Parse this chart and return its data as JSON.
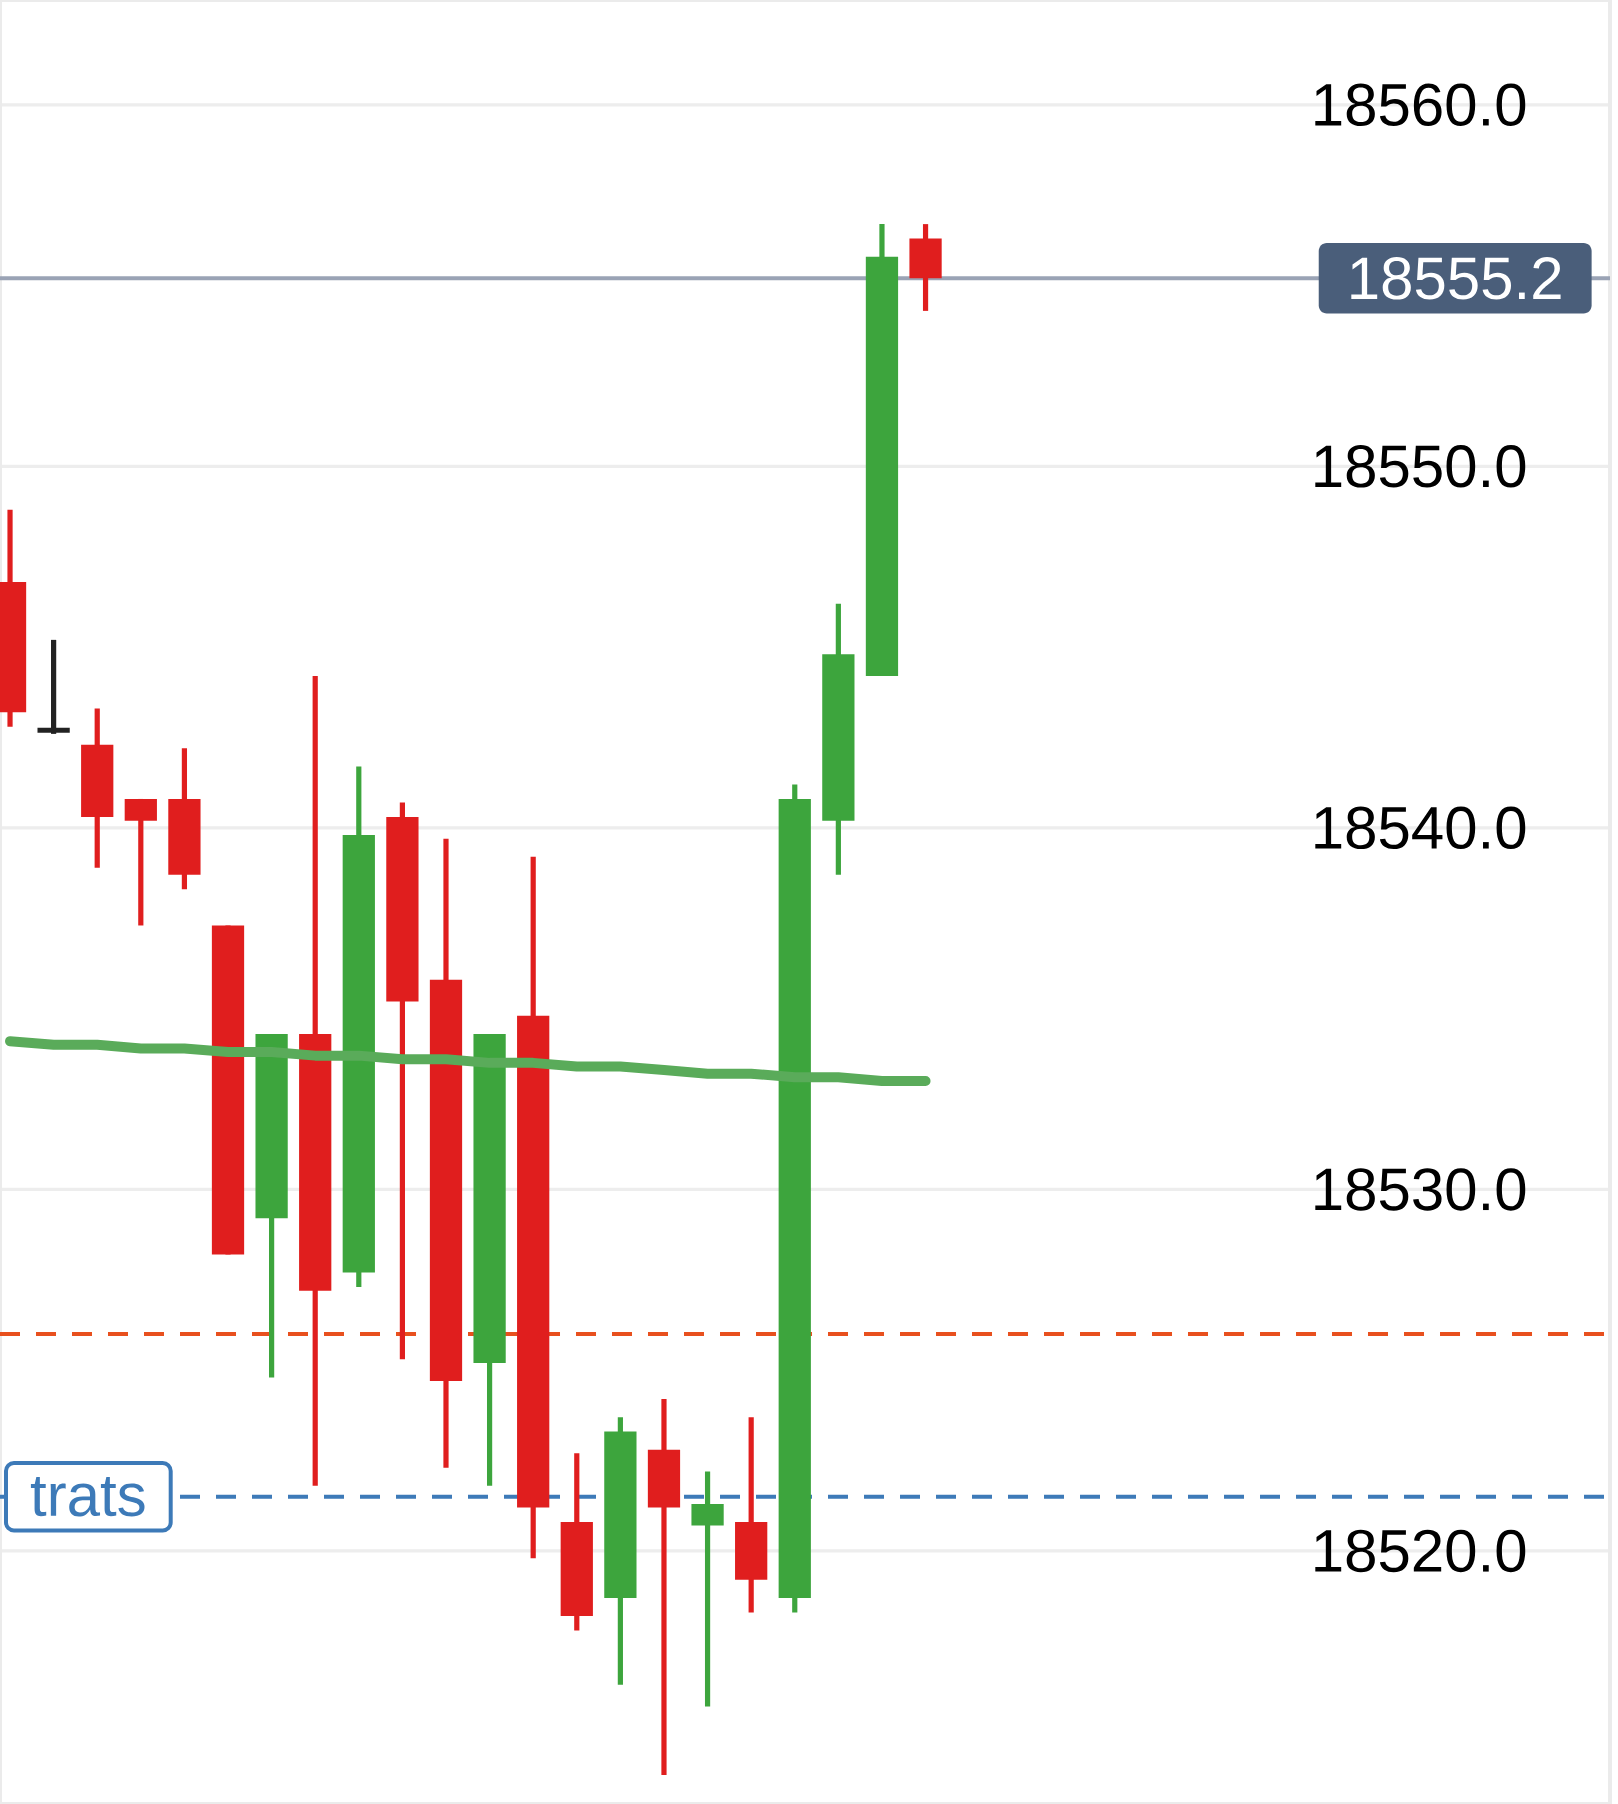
{
  "chart_data": {
    "type": "candlestick",
    "categories": [
      null,
      null,
      null,
      null,
      null,
      null,
      null,
      null,
      null,
      null,
      null,
      null,
      null,
      null,
      null,
      null,
      null,
      null,
      null,
      null,
      null,
      null
    ],
    "ohlc": [
      [
        18546.8,
        18548.8,
        18542.8,
        18543.2
      ],
      [
        18542.7,
        18545.2,
        18542.6,
        18542.7
      ],
      [
        18542.3,
        18543.3,
        18538.9,
        18540.3
      ],
      [
        18540.8,
        18540.8,
        18537.3,
        18540.2
      ],
      [
        18540.8,
        18542.2,
        18538.3,
        18538.7
      ],
      [
        18537.3,
        18537.3,
        18528.2,
        18528.2
      ],
      [
        18529.2,
        18534.3,
        18524.8,
        18534.3
      ],
      [
        18534.3,
        18544.2,
        18521.8,
        18527.2
      ],
      [
        18527.7,
        18541.7,
        18527.3,
        18539.8
      ],
      [
        18540.3,
        18540.7,
        18525.3,
        18535.2
      ],
      [
        18535.8,
        18539.7,
        18522.3,
        18524.7
      ],
      [
        18525.2,
        18534.3,
        18521.8,
        18534.3
      ],
      [
        18534.8,
        18539.2,
        18519.8,
        18521.2
      ],
      [
        18520.8,
        18522.7,
        18517.8,
        18518.2
      ],
      [
        18518.7,
        18523.7,
        18516.3,
        18523.3
      ],
      [
        18522.8,
        18524.2,
        18513.8,
        18521.2
      ],
      [
        18520.7,
        18522.2,
        18515.7,
        18521.3
      ],
      [
        18520.8,
        18523.7,
        18518.3,
        18519.2
      ],
      [
        18518.7,
        18541.2,
        18518.3,
        18540.8
      ],
      [
        18540.2,
        18546.2,
        18538.7,
        18544.8
      ],
      [
        18544.2,
        18556.7,
        18544.2,
        18555.8
      ],
      [
        18556.3,
        18556.7,
        18554.3,
        18555.2
      ]
    ],
    "colors": [
      "#e01e1e",
      "#222222",
      "#e01e1e",
      "#e01e1e",
      "#e01e1e",
      "#e01e1e",
      "#3da53d",
      "#e01e1e",
      "#3da53d",
      "#e01e1e",
      "#e01e1e",
      "#3da53d",
      "#e01e1e",
      "#e01e1e",
      "#3da53d",
      "#e01e1e",
      "#3da53d",
      "#e01e1e",
      "#3da53d",
      "#3da53d",
      "#3da53d",
      "#e01e1e"
    ],
    "series": [
      {
        "type": "line",
        "color": "#5aab5a",
        "values": [
          18534.1,
          18534.0,
          18534.0,
          18533.9,
          18533.9,
          18533.8,
          18533.8,
          18533.7,
          18533.7,
          18533.6,
          18533.6,
          18533.5,
          18533.5,
          18533.4,
          18533.4,
          18533.3,
          18533.2,
          18533.2,
          18533.1,
          18533.1,
          18533.0,
          18533.0
        ]
      }
    ],
    "ylim": [
      18513,
      18562.9
    ],
    "yticks": [
      {
        "value": 18520,
        "label": "18520.0"
      },
      {
        "value": 18530,
        "label": "18530.0"
      },
      {
        "value": 18540,
        "label": "18540.0"
      },
      {
        "value": 18550,
        "label": "18550.0"
      },
      {
        "value": 18560,
        "label": "18560.0"
      }
    ],
    "grid": "y",
    "tick_labels": "y",
    "ref_lines": [
      {
        "axis": "y",
        "value": 18555.2,
        "label": "18555.2",
        "color": "#9aa3b5",
        "line_style": "solid"
      },
      {
        "axis": "y",
        "value": 18526.0,
        "color": "#e8501e",
        "line_style": "dashed"
      },
      {
        "axis": "y",
        "value": 18521.5,
        "label": "trats",
        "color": "#3d7ab8",
        "line_style": "dashed"
      }
    ]
  }
}
